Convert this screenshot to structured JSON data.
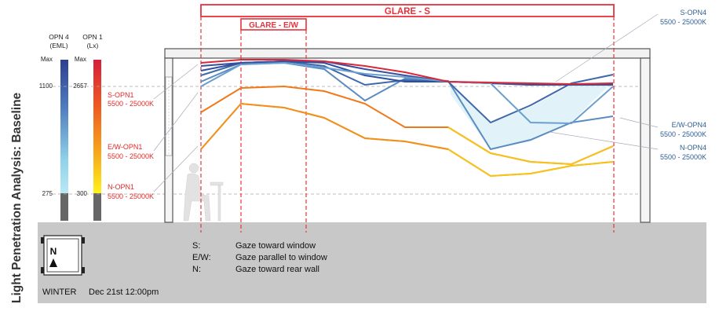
{
  "title": "Light Penetration Analysis: Baseline",
  "glare_s": "GLARE - S",
  "glare_ew": "GLARE - E/W",
  "scale_opn4": {
    "label_line1": "OPN 4",
    "label_line2": "(EML)",
    "max": "Max",
    "mid": "1100",
    "low": "275"
  },
  "scale_opn1": {
    "label_line1": "OPN 1",
    "label_line2": "(Lx)",
    "max": "Max",
    "mid": "2657",
    "low": "300"
  },
  "left_labels": [
    {
      "name": "S-OPN1",
      "range": "5500 - 25000K"
    },
    {
      "name": "E/W-OPN1",
      "range": "5500 - 25000K"
    },
    {
      "name": "N-OPN1",
      "range": "5500 - 25000K"
    }
  ],
  "right_labels": [
    {
      "name": "S-OPN4",
      "range": "5500 - 25000K"
    },
    {
      "name": "E/W-OPN4",
      "range": "5500 - 25000K"
    },
    {
      "name": "N-OPN4",
      "range": "5500 - 25000K"
    }
  ],
  "compass": {
    "letter": "N"
  },
  "season": "WINTER",
  "datetime": "Dec 21st 12:00pm",
  "legend": [
    {
      "key": "S:",
      "desc": "Gaze toward window"
    },
    {
      "key": "E/W:",
      "desc": "Gaze parallel to window"
    },
    {
      "key": "N:",
      "desc": "Gaze toward rear wall"
    }
  ],
  "colors": {
    "glare_red": "#e8323c",
    "label_red": "#e02a2a",
    "label_blue": "#2f5f93",
    "floor_gray": "#c8c8c8",
    "opn1_orange": "#f07818",
    "opn1_yellow": "#f6c21c",
    "opn4_blue": "#3956a8",
    "opn4_light": "#6f9cc8"
  }
}
